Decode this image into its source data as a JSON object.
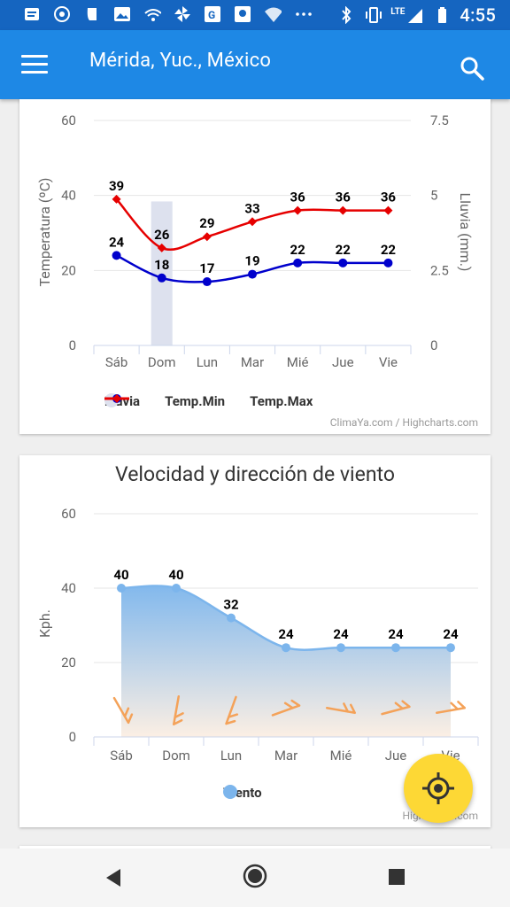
{
  "status_bar": {
    "time": "4:55",
    "network": "LTE"
  },
  "app_bar": {
    "title": "Mérida, Yuc., México"
  },
  "chart1": {
    "credit": "ClimaYa.com / Highcharts.com",
    "yaxis_left": {
      "title": "Temperatura (ºC)",
      "ticks": [
        "0",
        "20",
        "40",
        "60"
      ]
    },
    "yaxis_right": {
      "title": "Lluvia (mm.)",
      "ticks": [
        "0",
        "2.5",
        "5",
        "7.5"
      ]
    },
    "legend": {
      "rain": "Lluvia",
      "min": "Temp.Min",
      "max": "Temp.Max"
    }
  },
  "chart2": {
    "title": "Velocidad y dirección de viento",
    "credit": "Highcharts.com",
    "yaxis": {
      "title": "Kph.",
      "ticks": [
        "0",
        "20",
        "40",
        "60"
      ]
    },
    "legend": {
      "wind": "Viento"
    }
  },
  "colors": {
    "primary": "#1e88e5",
    "status": "#1565c0",
    "temp_min": "#0000cc",
    "temp_max": "#e60000",
    "rain": "#dde1ee",
    "wind": "#7cb5ec",
    "arrow": "#f4a259",
    "fab": "#fdd835"
  },
  "icons": {
    "menu": "menu-icon",
    "search": "search-icon",
    "locate": "my-location-icon"
  },
  "chart_data": [
    {
      "type": "line",
      "categories": [
        "Sáb",
        "Dom",
        "Lun",
        "Mar",
        "Mié",
        "Jue",
        "Vie"
      ],
      "ylabel": "Temperatura (ºC)",
      "ylim": [
        0,
        60
      ],
      "y2label": "Lluvia (mm.)",
      "y2lim": [
        0,
        7.5
      ],
      "series": [
        {
          "name": "Lluvia",
          "type": "bar",
          "axis": "right",
          "values": [
            0,
            4.8,
            0,
            0,
            0,
            0,
            0
          ]
        },
        {
          "name": "Temp.Min",
          "values": [
            24,
            18,
            17,
            19,
            22,
            22,
            22
          ]
        },
        {
          "name": "Temp.Max",
          "values": [
            39,
            26,
            29,
            33,
            36,
            36,
            36
          ]
        }
      ]
    },
    {
      "type": "area",
      "title": "Velocidad y dirección de viento",
      "categories": [
        "Sáb",
        "Dom",
        "Lun",
        "Mar",
        "Mié",
        "Jue",
        "Vie"
      ],
      "ylabel": "Kph.",
      "ylim": [
        0,
        60
      ],
      "series": [
        {
          "name": "Viento",
          "values": [
            40,
            40,
            32,
            24,
            24,
            24,
            24
          ]
        }
      ]
    }
  ]
}
